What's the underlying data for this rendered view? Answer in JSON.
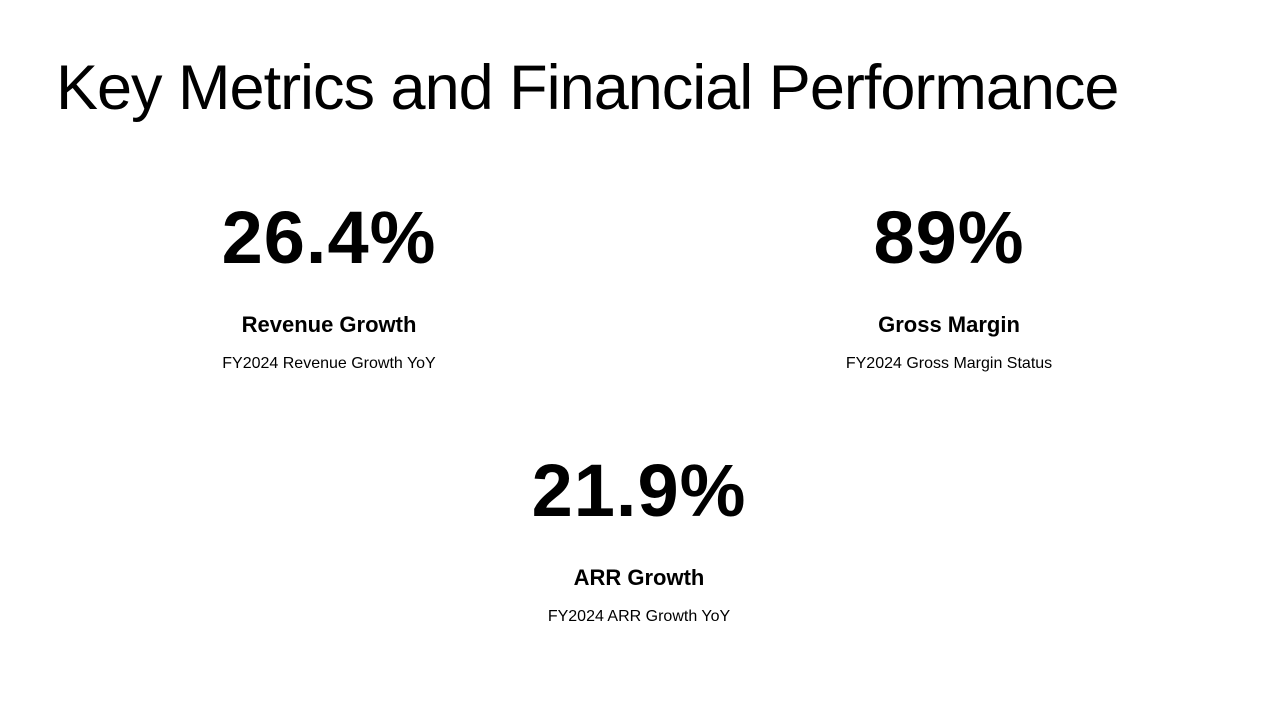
{
  "title": "Key Metrics and Financial Performance",
  "metrics": [
    {
      "value": "26.4%",
      "label": "Revenue Growth",
      "description": "FY2024 Revenue Growth YoY"
    },
    {
      "value": "89%",
      "label": "Gross Margin",
      "description": "FY2024 Gross Margin Status"
    },
    {
      "value": "21.9%",
      "label": "ARR Growth",
      "description": "FY2024 ARR Growth YoY"
    }
  ]
}
